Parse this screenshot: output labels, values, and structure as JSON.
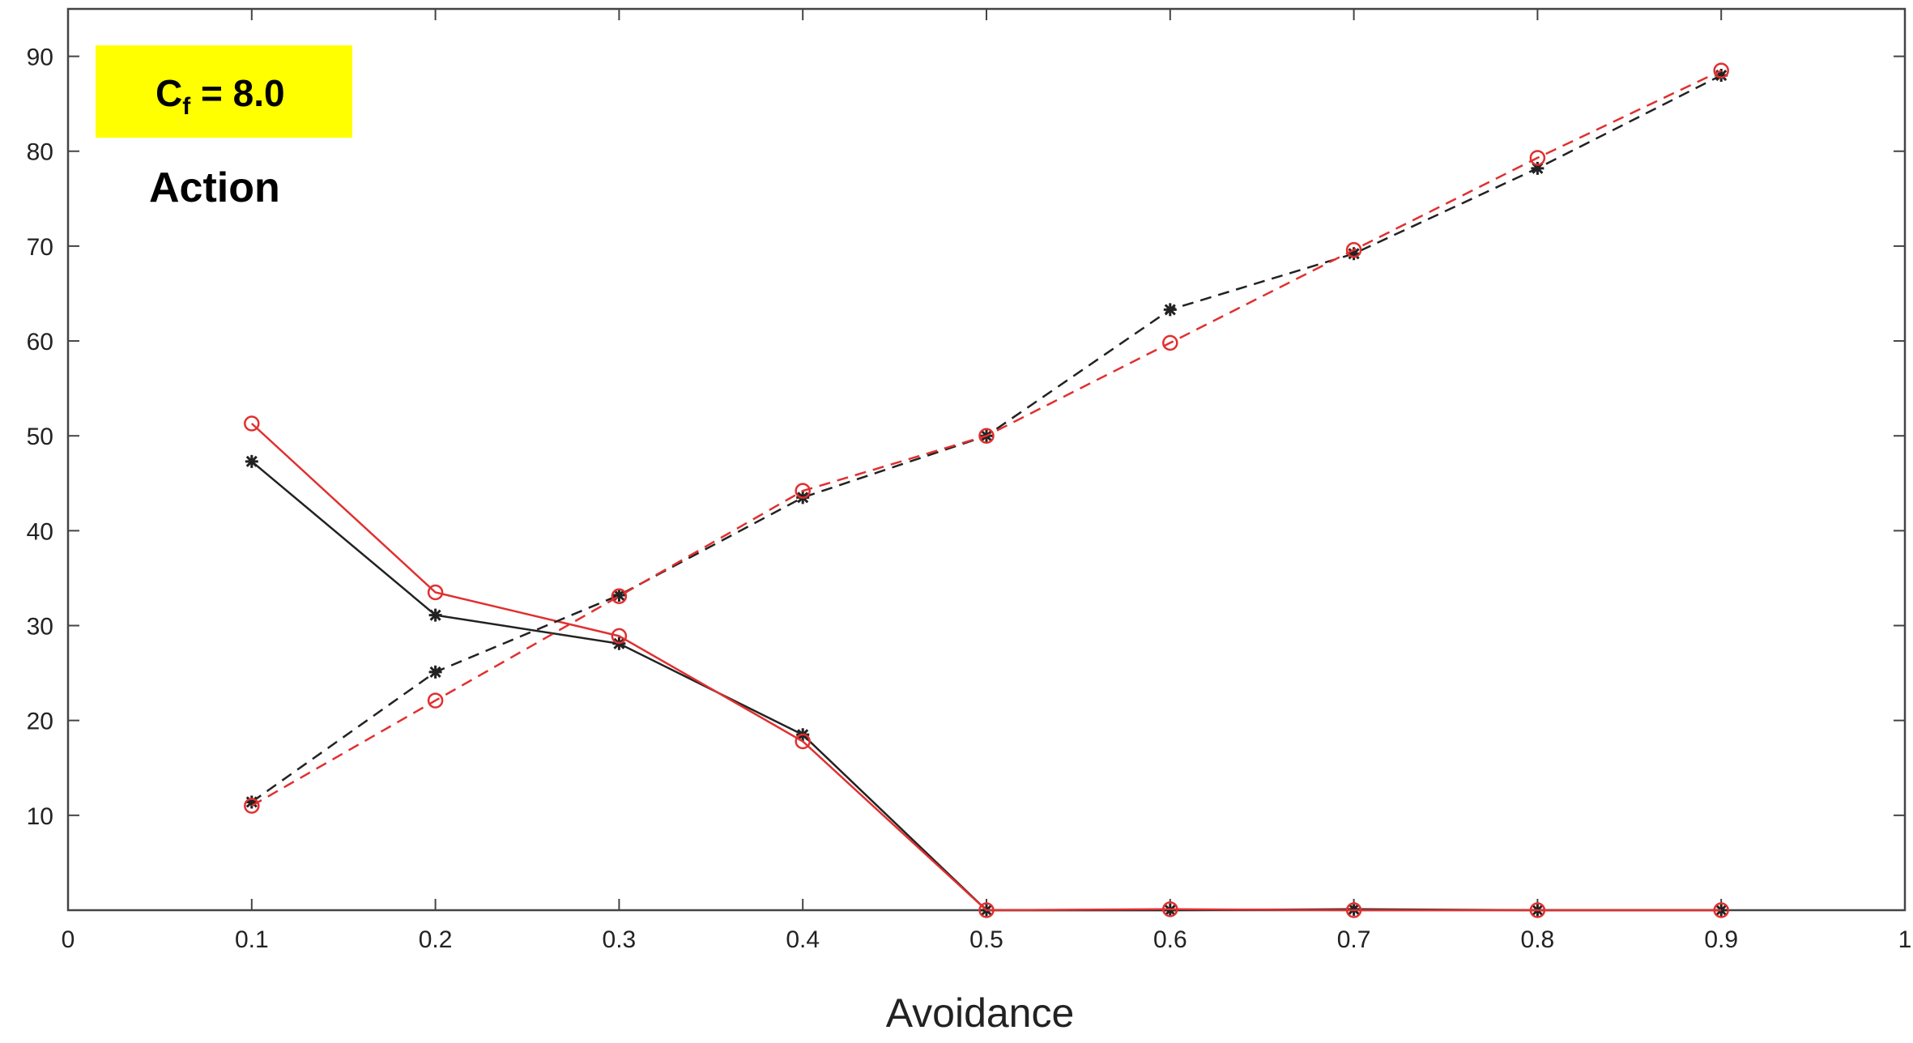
{
  "chart_data": {
    "type": "line",
    "title": "",
    "xlabel": "Avoidance",
    "ylabel": "",
    "xlim": [
      0,
      1
    ],
    "ylim": [
      0,
      95
    ],
    "x_ticks": [
      0,
      0.1,
      0.2,
      0.3,
      0.4,
      0.5,
      0.6,
      0.7,
      0.8,
      0.9,
      1
    ],
    "x_tick_labels": [
      "0",
      "0.1",
      "0.2",
      "0.3",
      "0.4",
      "0.5",
      "0.6",
      "0.7",
      "0.8",
      "0.9",
      "1"
    ],
    "y_ticks": [
      10,
      20,
      30,
      40,
      50,
      60,
      70,
      80,
      90
    ],
    "y_tick_labels": [
      "10",
      "20",
      "30",
      "40",
      "50",
      "60",
      "70",
      "80",
      "90"
    ],
    "grid": false,
    "legend": "none",
    "x": [
      0.1,
      0.2,
      0.3,
      0.4,
      0.5,
      0.6,
      0.7,
      0.8,
      0.9
    ],
    "series": [
      {
        "color": "#222222",
        "line": "solid",
        "marker": "star",
        "values": [
          47.3,
          31.1,
          28.1,
          18.5,
          0.0,
          0.0,
          0.1,
          0.0,
          0.0
        ]
      },
      {
        "color": "#e03030",
        "line": "solid",
        "marker": "circle",
        "values": [
          51.3,
          33.5,
          28.9,
          17.8,
          0.0,
          0.1,
          0.0,
          0.0,
          0.0
        ]
      },
      {
        "color": "#222222",
        "line": "dashed",
        "marker": "star",
        "values": [
          11.4,
          25.1,
          33.2,
          43.5,
          50.0,
          63.3,
          69.2,
          78.2,
          88.0
        ]
      },
      {
        "color": "#e03030",
        "line": "dashed",
        "marker": "circle",
        "values": [
          11.0,
          22.1,
          33.1,
          44.2,
          50.0,
          59.8,
          69.6,
          79.3,
          88.5
        ]
      }
    ],
    "annotations": {
      "parameter_symbol": "C",
      "parameter_subscript": "f",
      "parameter_value": " = 8.0",
      "label": "Action",
      "box_color": "#ffff00"
    }
  }
}
